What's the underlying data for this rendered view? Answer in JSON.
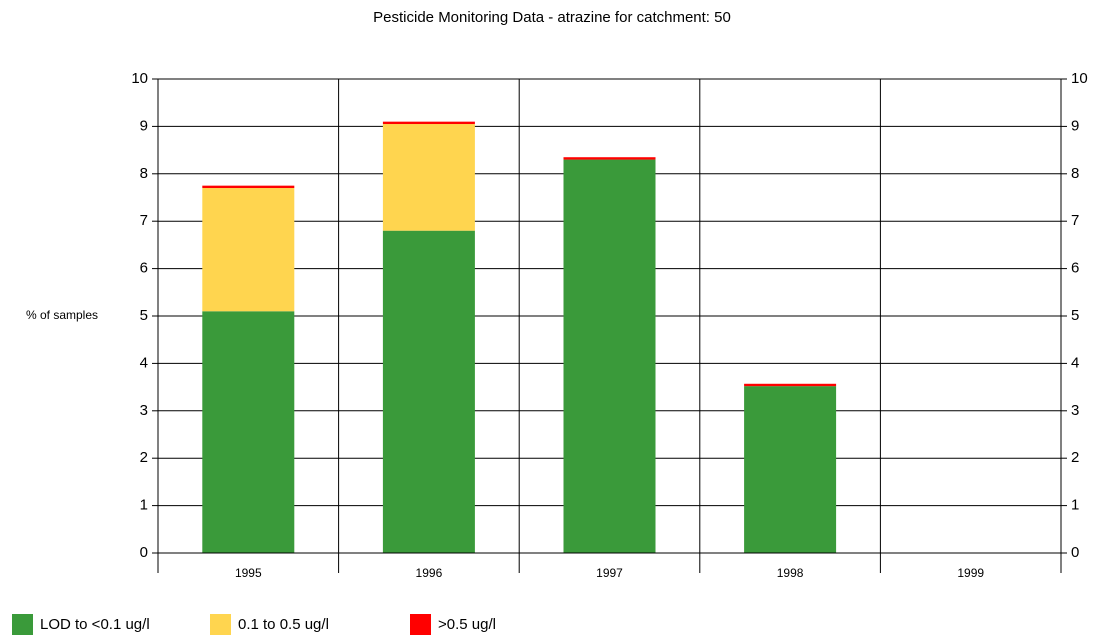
{
  "chart_data": {
    "type": "stacked_bar",
    "title": "Pesticide Monitoring Data - atrazine for catchment: 50",
    "y_label": "% of samples",
    "categories": [
      "1995",
      "1996",
      "1997",
      "1998",
      "1999"
    ],
    "series": [
      {
        "name": "LOD to <0.1 ug/l",
        "color": "#3a9a3a",
        "values": [
          5.1,
          6.8,
          8.3,
          3.52,
          0
        ]
      },
      {
        "name": "0.1 to 0.5 ug/l",
        "color": "#ffd54f",
        "values": [
          2.6,
          2.25,
          0,
          0,
          0
        ]
      },
      {
        "name": ">0.5 ug/l",
        "color": "#ff0000",
        "values": [
          0.05,
          0.05,
          0.05,
          0.05,
          0
        ]
      }
    ],
    "ylim": [
      0,
      10
    ],
    "yticks": [
      0,
      1,
      2,
      3,
      4,
      5,
      6,
      7,
      8,
      9,
      10
    ],
    "grid": true
  }
}
